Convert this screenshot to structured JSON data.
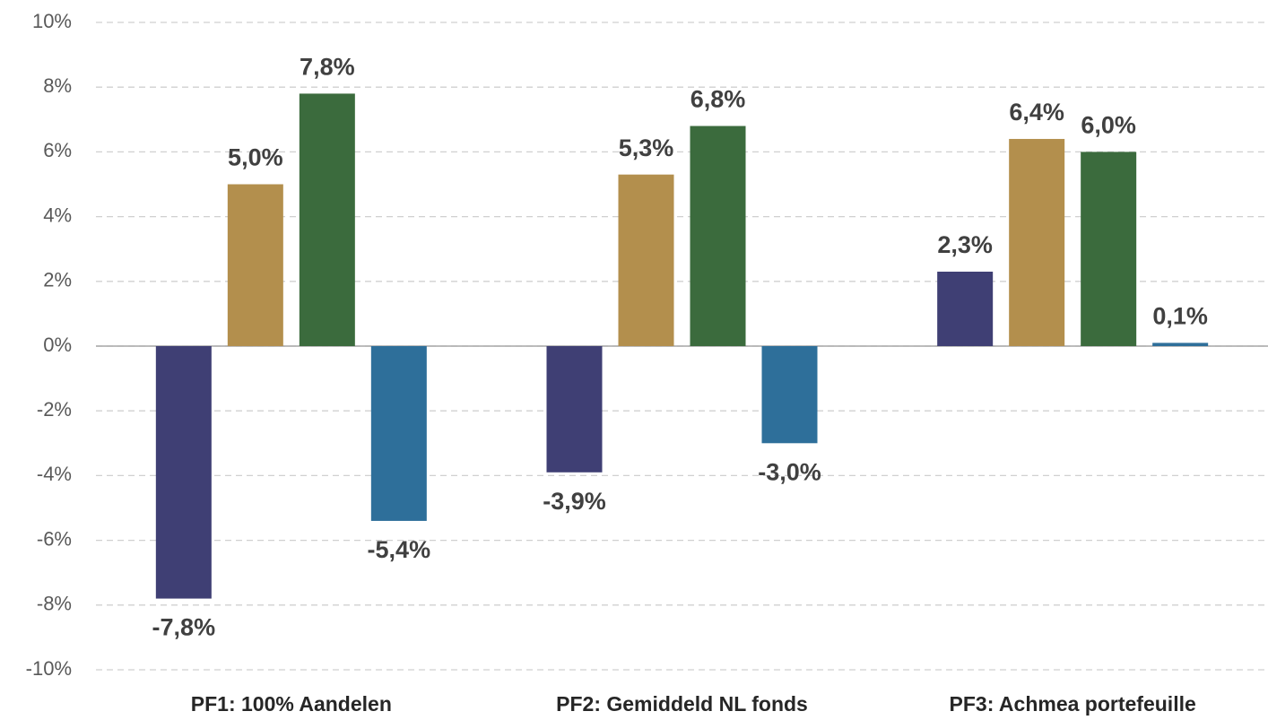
{
  "chart_data": {
    "type": "bar",
    "categories": [
      "PF1: 100% Aandelen",
      "PF2: Gemiddeld NL fonds",
      "PF3: Achmea portefeuille"
    ],
    "series": [
      {
        "color": "#3f3f74",
        "values": [
          -7.8,
          -3.9,
          2.3
        ],
        "value_labels": [
          "-7,8%",
          "-3,9%",
          "2,3%"
        ]
      },
      {
        "color": "#b38f4d",
        "values": [
          5.0,
          5.3,
          6.4
        ],
        "value_labels": [
          "5,0%",
          "5,3%",
          "6,4%"
        ]
      },
      {
        "color": "#3b6b3d",
        "values": [
          7.8,
          6.8,
          6.0
        ],
        "value_labels": [
          "7,8%",
          "6,8%",
          "6,0%"
        ]
      },
      {
        "color": "#2e6f9a",
        "values": [
          -5.4,
          -3.0,
          0.1
        ],
        "value_labels": [
          "-5,4%",
          "-3,0%",
          "0,1%"
        ]
      }
    ],
    "ylim": [
      -10,
      10
    ],
    "yticks": [
      {
        "value": -10,
        "label": "-10%"
      },
      {
        "value": -8,
        "label": "-8%"
      },
      {
        "value": -6,
        "label": "-6%"
      },
      {
        "value": -4,
        "label": "-4%"
      },
      {
        "value": -2,
        "label": "-2%"
      },
      {
        "value": 0,
        "label": "0%"
      },
      {
        "value": 2,
        "label": "2%"
      },
      {
        "value": 4,
        "label": "4%"
      },
      {
        "value": 6,
        "label": "6%"
      },
      {
        "value": 8,
        "label": "8%"
      },
      {
        "value": 10,
        "label": "10%"
      }
    ],
    "grid": true
  }
}
